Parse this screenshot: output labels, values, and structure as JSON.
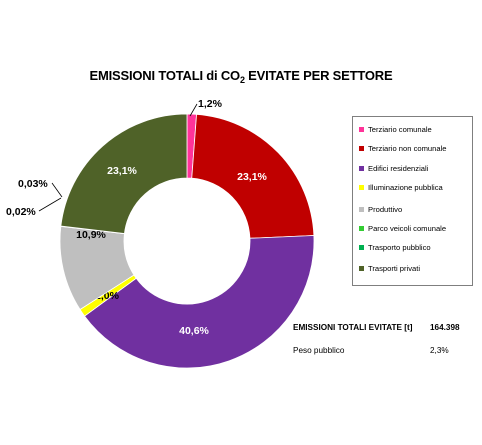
{
  "title": {
    "prefix": "EMISSIONI TOTALI di CO",
    "sub": "2",
    "suffix": " EVITATE PER SETTORE"
  },
  "chart_data": {
    "type": "donut",
    "slices": [
      {
        "name": "Terziario comunale",
        "value": 1.2,
        "label": "1,2%",
        "color": "#ff3399"
      },
      {
        "name": "Terziario non comunale",
        "value": 23.1,
        "label": "23,1%",
        "color": "#c00000"
      },
      {
        "name": "Edifici residenziali",
        "value": 40.6,
        "label": "40,6%",
        "color": "#7030a0"
      },
      {
        "name": "Illuminazione pubblica",
        "value": 1.0,
        "label": "1,0%",
        "color": "#ffff00"
      },
      {
        "name": "Produttivo",
        "value": 10.9,
        "label": "10,9%",
        "color": "#bfbfbf"
      },
      {
        "name": "Parco veicoli comunale",
        "value": 0.02,
        "label": "0,02%",
        "color": "#33cc33"
      },
      {
        "name": "Trasporto pubblico",
        "value": 0.03,
        "label": "0,03%",
        "color": "#00b050"
      },
      {
        "name": "Trasporti privati",
        "value": 23.1,
        "label": "23,1%",
        "color": "#4f6228"
      }
    ],
    "legend_position": "right"
  },
  "totals": {
    "total_label": "EMISSIONI TOTALI EVITATE [t]",
    "total_value": "164.398",
    "public_label": "Peso pubblico",
    "public_value": "2,3%"
  }
}
